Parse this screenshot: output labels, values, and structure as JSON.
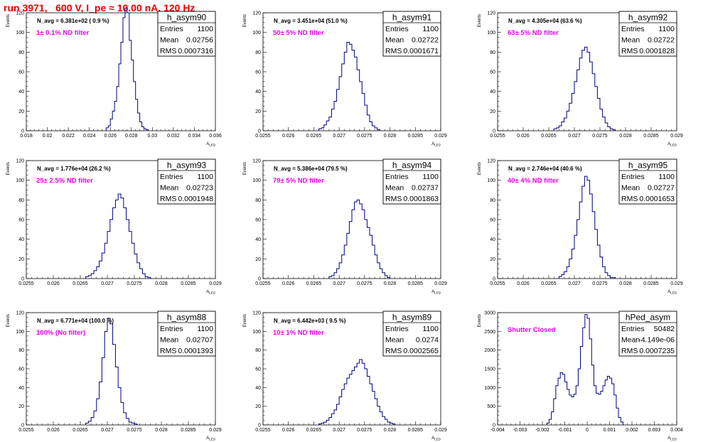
{
  "page_title": "run 3971,   600 V, I_pe ≈ 10.00 nA, 120 Hz",
  "chart_data": [
    {
      "type": "histogram",
      "name": "h_asym90",
      "n_avg": "N_avg = 6.381e+02 ( 0.9 %)",
      "filter": "1± 0.1% ND filter",
      "stats": {
        "entries_label": "Entries",
        "entries": "1100",
        "mean_label": "Mean",
        "mean": "0.02756",
        "rms_label": "RMS",
        "rms": "0.0007316"
      },
      "xlabel": "A_LED",
      "ylabel": "Events",
      "xlim": [
        0.018,
        0.036
      ],
      "ylim": [
        0,
        120
      ],
      "xticks": [
        "0.018",
        "0.02",
        "0.022",
        "0.024",
        "0.026",
        "0.028",
        "0.03",
        "0.032",
        "0.034",
        "0.036"
      ],
      "yticks": [
        "0",
        "20",
        "40",
        "60",
        "80",
        "100",
        "120"
      ],
      "bin_edges": [
        0.0256,
        0.0258,
        0.026,
        0.0262,
        0.0264,
        0.0266,
        0.0268,
        0.027,
        0.0272,
        0.0274,
        0.0276,
        0.0278,
        0.028,
        0.0282,
        0.0284,
        0.0286,
        0.0288,
        0.029,
        0.0292,
        0.0294,
        0.0296
      ],
      "counts": [
        3,
        5,
        12,
        20,
        30,
        45,
        68,
        90,
        115,
        125,
        120,
        92,
        72,
        50,
        32,
        18,
        9,
        4,
        2,
        1
      ]
    },
    {
      "type": "histogram",
      "name": "h_asym91",
      "n_avg": "N_avg = 3.451e+04 (51.0 %)",
      "filter": "50± 5% ND filter",
      "stats": {
        "entries_label": "Entries",
        "entries": "1100",
        "mean_label": "Mean",
        "mean": "0.02722",
        "rms_label": "RMS",
        "rms": "0.0001671"
      },
      "xlabel": "A_LED",
      "ylabel": "Events",
      "xlim": [
        0.0255,
        0.029
      ],
      "ylim": [
        0,
        120
      ],
      "xticks": [
        "0.0255",
        "0.026",
        "0.0265",
        "0.027",
        "0.0275",
        "0.028",
        "0.0285",
        "0.029"
      ],
      "yticks": [
        "0",
        "20",
        "40",
        "60",
        "80",
        "100",
        "120"
      ],
      "bin_edges": [
        0.0266,
        0.02665,
        0.0267,
        0.02675,
        0.0268,
        0.02685,
        0.0269,
        0.02695,
        0.027,
        0.02705,
        0.0271,
        0.02715,
        0.0272,
        0.02725,
        0.0273,
        0.02735,
        0.0274,
        0.02745,
        0.0275,
        0.02755,
        0.0276,
        0.02765,
        0.0277,
        0.02775,
        0.0278
      ],
      "counts": [
        2,
        3,
        6,
        10,
        14,
        22,
        30,
        42,
        55,
        68,
        80,
        90,
        88,
        82,
        75,
        62,
        50,
        38,
        26,
        16,
        9,
        5,
        3,
        1
      ]
    },
    {
      "type": "histogram",
      "name": "h_asym92",
      "n_avg": "N_avg = 4.305e+04 (63.6 %)",
      "filter": "63± 5% ND filter",
      "stats": {
        "entries_label": "Entries",
        "entries": "1100",
        "mean_label": "Mean",
        "mean": "0.02722",
        "rms_label": "RMS",
        "rms": "0.0001828"
      },
      "xlabel": "A_LED",
      "ylabel": "Events",
      "xlim": [
        0.0255,
        0.029
      ],
      "ylim": [
        0,
        120
      ],
      "xticks": [
        "0.0255",
        "0.026",
        "0.0265",
        "0.027",
        "0.0275",
        "0.028",
        "0.0285",
        "0.029"
      ],
      "yticks": [
        "0",
        "20",
        "40",
        "60",
        "80",
        "100",
        "120"
      ],
      "bin_edges": [
        0.0266,
        0.02665,
        0.0267,
        0.02675,
        0.0268,
        0.02685,
        0.0269,
        0.02695,
        0.027,
        0.02705,
        0.0271,
        0.02715,
        0.0272,
        0.02725,
        0.0273,
        0.02735,
        0.0274,
        0.02745,
        0.0275,
        0.02755,
        0.0276,
        0.02765,
        0.0277,
        0.02775,
        0.0278
      ],
      "counts": [
        2,
        3,
        5,
        9,
        13,
        20,
        28,
        38,
        50,
        62,
        74,
        82,
        85,
        80,
        70,
        58,
        45,
        33,
        22,
        14,
        8,
        4,
        2,
        1
      ]
    },
    {
      "type": "histogram",
      "name": "h_asym93",
      "n_avg": "N_avg = 1.776e+04 (26.2 %)",
      "filter": "25± 2.5% ND filter",
      "stats": {
        "entries_label": "Entries",
        "entries": "1100",
        "mean_label": "Mean",
        "mean": "0.02723",
        "rms_label": "RMS",
        "rms": "0.0001948"
      },
      "xlabel": "A_LED",
      "ylabel": "Events",
      "xlim": [
        0.0255,
        0.029
      ],
      "ylim": [
        0,
        120
      ],
      "xticks": [
        "0.0255",
        "0.026",
        "0.0265",
        "0.027",
        "0.0275",
        "0.028",
        "0.0285",
        "0.029"
      ],
      "yticks": [
        "0",
        "20",
        "40",
        "60",
        "80",
        "100",
        "120"
      ],
      "bin_edges": [
        0.0266,
        0.02665,
        0.0267,
        0.02675,
        0.0268,
        0.02685,
        0.0269,
        0.02695,
        0.027,
        0.02705,
        0.0271,
        0.02715,
        0.0272,
        0.02725,
        0.0273,
        0.02735,
        0.0274,
        0.02745,
        0.0275,
        0.02755,
        0.0276,
        0.02765,
        0.0277,
        0.02775,
        0.0278
      ],
      "counts": [
        2,
        3,
        5,
        8,
        12,
        18,
        26,
        36,
        48,
        60,
        72,
        80,
        86,
        82,
        72,
        60,
        48,
        36,
        25,
        16,
        10,
        5,
        2,
        1
      ]
    },
    {
      "type": "histogram",
      "name": "h_asym94",
      "n_avg": "N_avg = 5.386e+04 (79.5 %)",
      "filter": "79± 5% ND filter",
      "stats": {
        "entries_label": "Entries",
        "entries": "1100",
        "mean_label": "Mean",
        "mean": "0.02737",
        "rms_label": "RMS",
        "rms": "0.0001863"
      },
      "xlabel": "A_LED",
      "ylabel": "Events",
      "xlim": [
        0.0255,
        0.029
      ],
      "ylim": [
        0,
        120
      ],
      "xticks": [
        "0.0255",
        "0.026",
        "0.0265",
        "0.027",
        "0.0275",
        "0.028",
        "0.0285",
        "0.029"
      ],
      "yticks": [
        "0",
        "20",
        "40",
        "60",
        "80",
        "100",
        "120"
      ],
      "bin_edges": [
        0.0268,
        0.02685,
        0.0269,
        0.02695,
        0.027,
        0.02705,
        0.0271,
        0.02715,
        0.0272,
        0.02725,
        0.0273,
        0.02735,
        0.0274,
        0.02745,
        0.0275,
        0.02755,
        0.0276,
        0.02765,
        0.0277,
        0.02775,
        0.0278,
        0.02785,
        0.0279,
        0.02795,
        0.028
      ],
      "counts": [
        2,
        3,
        6,
        10,
        16,
        24,
        34,
        46,
        58,
        70,
        78,
        80,
        76,
        70,
        60,
        52,
        44,
        34,
        24,
        16,
        10,
        6,
        3,
        1
      ]
    },
    {
      "type": "histogram",
      "name": "h_asym95",
      "n_avg": "N_avg = 2.746e+04 (40.6 %)",
      "filter": "40± 4% ND filter",
      "stats": {
        "entries_label": "Entries",
        "entries": "1100",
        "mean_label": "Mean",
        "mean": "0.02727",
        "rms_label": "RMS",
        "rms": "0.0001653"
      },
      "xlabel": "A_LED",
      "ylabel": "Events",
      "xlim": [
        0.0255,
        0.029
      ],
      "ylim": [
        0,
        120
      ],
      "xticks": [
        "0.0255",
        "0.026",
        "0.0265",
        "0.027",
        "0.0275",
        "0.028",
        "0.0285",
        "0.029"
      ],
      "yticks": [
        "0",
        "20",
        "40",
        "60",
        "80",
        "100",
        "120"
      ],
      "bin_edges": [
        0.0267,
        0.02675,
        0.0268,
        0.02685,
        0.0269,
        0.02695,
        0.027,
        0.02705,
        0.0271,
        0.02715,
        0.0272,
        0.02725,
        0.0273,
        0.02735,
        0.0274,
        0.02745,
        0.0275,
        0.02755,
        0.0276,
        0.02765,
        0.0277,
        0.02775,
        0.0278
      ],
      "counts": [
        2,
        4,
        7,
        12,
        20,
        30,
        44,
        60,
        78,
        94,
        104,
        100,
        86,
        68,
        50,
        34,
        22,
        12,
        6,
        3,
        1,
        1
      ]
    },
    {
      "type": "histogram",
      "name": "h_asym88",
      "n_avg": "N_avg = 6.771e+04 (100.0 %)",
      "filter": "100% (No filter)",
      "stats": {
        "entries_label": "Entries",
        "entries": "1100",
        "mean_label": "Mean",
        "mean": "0.02707",
        "rms_label": "RMS",
        "rms": "0.0001393"
      },
      "xlabel": "A_LED",
      "ylabel": "Events",
      "xlim": [
        0.0255,
        0.029
      ],
      "ylim": [
        0,
        120
      ],
      "xticks": [
        "0.0255",
        "0.026",
        "0.0265",
        "0.027",
        "0.0275",
        "0.028",
        "0.0285",
        "0.029"
      ],
      "yticks": [
        "0",
        "20",
        "40",
        "60",
        "80",
        "100",
        "120"
      ],
      "bin_edges": [
        0.0266,
        0.02665,
        0.0267,
        0.02675,
        0.0268,
        0.02685,
        0.0269,
        0.02695,
        0.027,
        0.02705,
        0.0271,
        0.02715,
        0.0272,
        0.02725,
        0.0273,
        0.02735,
        0.0274,
        0.02745,
        0.0275,
        0.02755
      ],
      "counts": [
        2,
        4,
        8,
        15,
        28,
        46,
        72,
        100,
        114,
        108,
        86,
        62,
        40,
        24,
        13,
        7,
        3,
        2,
        1
      ]
    },
    {
      "type": "histogram",
      "name": "h_asym89",
      "n_avg": "N_avg = 6.442e+03 ( 9.5 %)",
      "filter": "10± 1% ND filter",
      "stats": {
        "entries_label": "Entries",
        "entries": "1100",
        "mean_label": "Mean",
        "mean": "0.0274",
        "rms_label": "RMS",
        "rms": "0.0002565"
      },
      "xlabel": "A_LED",
      "ylabel": "Events",
      "xlim": [
        0.0255,
        0.029
      ],
      "ylim": [
        0,
        120
      ],
      "xticks": [
        "0.0255",
        "0.026",
        "0.0265",
        "0.027",
        "0.0275",
        "0.028",
        "0.0285",
        "0.029"
      ],
      "yticks": [
        "0",
        "20",
        "40",
        "60",
        "80",
        "100",
        "120"
      ],
      "bin_edges": [
        0.0266,
        0.02665,
        0.0267,
        0.02675,
        0.0268,
        0.02685,
        0.0269,
        0.02695,
        0.027,
        0.02705,
        0.0271,
        0.02715,
        0.0272,
        0.02725,
        0.0273,
        0.02735,
        0.0274,
        0.02745,
        0.0275,
        0.02755,
        0.0276,
        0.02765,
        0.0277,
        0.02775,
        0.0278,
        0.02785,
        0.0279,
        0.02795,
        0.028,
        0.02805,
        0.0281
      ],
      "counts": [
        1,
        2,
        3,
        5,
        8,
        12,
        16,
        22,
        30,
        38,
        44,
        50,
        54,
        58,
        62,
        66,
        70,
        66,
        60,
        52,
        44,
        36,
        28,
        20,
        14,
        9,
        6,
        3,
        2,
        1
      ]
    },
    {
      "type": "histogram",
      "name": "hPed_asym",
      "n_avg": "",
      "filter": "Shutter Closed",
      "stats": {
        "entries_label": "Entries",
        "entries": "50482",
        "mean_label": "Mean",
        "mean": "-4.149e-06",
        "rms_label": "RMS",
        "rms": "0.0007235"
      },
      "xlabel": "A_LED",
      "ylabel": "Events",
      "xlim": [
        -0.004,
        0.004
      ],
      "ylim": [
        0,
        3000
      ],
      "xticks": [
        "-0.004",
        "-0.003",
        "-0.002",
        "-0.001",
        "0",
        "0.001",
        "0.002",
        "0.003",
        "0.004"
      ],
      "yticks": [
        "0",
        "500",
        "1000",
        "1500",
        "2000",
        "2500",
        "3000"
      ],
      "bin_edges": [
        -0.0018,
        -0.0017,
        -0.0016,
        -0.0015,
        -0.0014,
        -0.0013,
        -0.0012,
        -0.0011,
        -0.001,
        -0.0009,
        -0.0008,
        -0.0007,
        -0.0006,
        -0.0005,
        -0.0004,
        -0.0003,
        -0.0002,
        -0.0001,
        0.0,
        0.0001,
        0.0002,
        0.0003,
        0.0004,
        0.0005,
        0.0006,
        0.0007,
        0.0008,
        0.0009,
        0.001,
        0.0011,
        0.0012,
        0.0013,
        0.0014,
        0.0015,
        0.0016
      ],
      "counts": [
        50,
        150,
        350,
        700,
        1050,
        1250,
        1400,
        1350,
        1150,
        950,
        800,
        750,
        820,
        1050,
        1500,
        2100,
        2600,
        2950,
        2850,
        2300,
        1600,
        1050,
        850,
        820,
        900,
        1050,
        1200,
        1300,
        1250,
        1100,
        800,
        450,
        200,
        80
      ]
    }
  ]
}
